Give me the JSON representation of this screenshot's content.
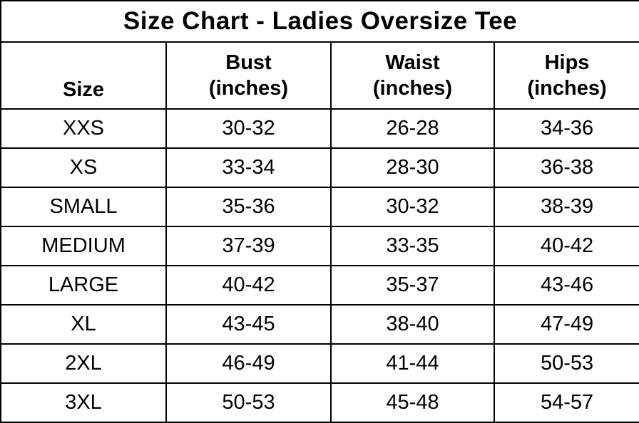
{
  "title": "Size Chart - Ladies Oversize Tee",
  "table": {
    "headers": [
      "Size",
      "Bust\n(inches)",
      "Waist\n(inches)",
      "Hips\n(inches)"
    ],
    "rows": [
      [
        "XXS",
        "30-32",
        "26-28",
        "34-36"
      ],
      [
        "XS",
        "33-34",
        "28-30",
        "36-38"
      ],
      [
        "SMALL",
        "35-36",
        "30-32",
        "38-39"
      ],
      [
        "MEDIUM",
        "37-39",
        "33-35",
        "40-42"
      ],
      [
        "LARGE",
        "40-42",
        "35-37",
        "43-46"
      ],
      [
        "XL",
        "43-45",
        "38-40",
        "47-49"
      ],
      [
        "2XL",
        "46-49",
        "41-44",
        "50-53"
      ],
      [
        "3XL",
        "50-53",
        "45-48",
        "54-57"
      ]
    ]
  },
  "colors": {
    "background": "#ffffff",
    "border": "#000000",
    "text": "#000000"
  },
  "chart_data": {
    "type": "table",
    "title": "Size Chart - Ladies Oversize Tee",
    "columns": [
      "Size",
      "Bust (inches)",
      "Waist (inches)",
      "Hips (inches)"
    ],
    "rows": [
      [
        "XXS",
        "30-32",
        "26-28",
        "34-36"
      ],
      [
        "XS",
        "33-34",
        "28-30",
        "36-38"
      ],
      [
        "SMALL",
        "35-36",
        "30-32",
        "38-39"
      ],
      [
        "MEDIUM",
        "37-39",
        "33-35",
        "40-42"
      ],
      [
        "LARGE",
        "40-42",
        "35-37",
        "43-46"
      ],
      [
        "XL",
        "43-45",
        "38-40",
        "47-49"
      ],
      [
        "2XL",
        "46-49",
        "41-44",
        "50-53"
      ],
      [
        "3XL",
        "50-53",
        "45-48",
        "54-57"
      ]
    ],
    "layout": {
      "grid": true,
      "title_position": "top",
      "header_rows": 1
    }
  }
}
